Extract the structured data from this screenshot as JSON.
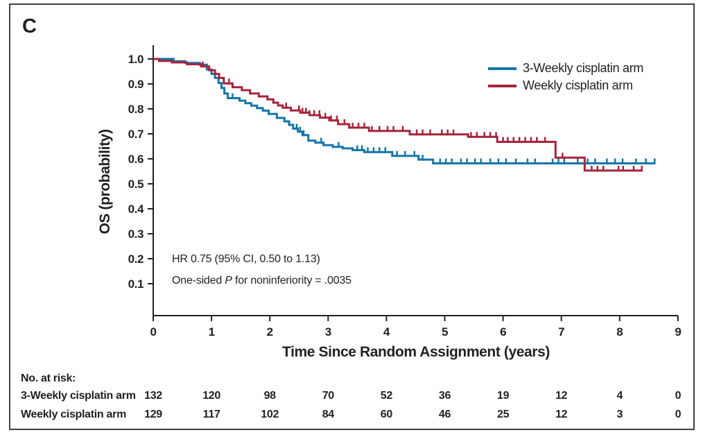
{
  "panel_label": "C",
  "annotation": {
    "line1": "HR 0.75 (95% CI, 0.50 to 1.13)",
    "line2_prefix": "One-sided ",
    "line2_italic": "P",
    "line2_suffix": " for noninferiority = .0035"
  },
  "chart_data": {
    "type": "line",
    "subtype": "kaplan-meier-step",
    "title": "",
    "xlabel": "Time Since Random Assignment (years)",
    "ylabel": "OS (probability)",
    "xlim": [
      0,
      9
    ],
    "ylim": [
      0.0,
      1.0
    ],
    "grid": false,
    "legend_position": "top-right",
    "xticks": [
      0,
      1,
      2,
      3,
      4,
      5,
      6,
      7,
      8,
      9
    ],
    "yticks": [
      {
        "label": "1.0",
        "v": 1.0
      },
      {
        "label": "0.9",
        "v": 0.9
      },
      {
        "label": "0.8",
        "v": 0.8
      },
      {
        "label": "0.7",
        "v": 0.7
      },
      {
        "label": "0.6",
        "v": 0.6
      },
      {
        "label": "0.5",
        "v": 0.5
      },
      {
        "label": "0.4",
        "v": 0.4
      },
      {
        "label": "0.3",
        "v": 0.3
      },
      {
        "label": "0.2",
        "v": 0.2
      },
      {
        "label": "0.1",
        "v": 0.1
      }
    ],
    "annotations": [
      "HR 0.75 (95% CI, 0.50 to 1.13)",
      "One-sided P for noninferiority = .0035"
    ],
    "series": [
      {
        "name": "3-Weekly cisplatin arm",
        "color": "#1575a8",
        "steps": [
          [
            0,
            1.0
          ],
          [
            0.35,
            0.991
          ],
          [
            0.55,
            0.984
          ],
          [
            0.8,
            0.977
          ],
          [
            0.92,
            0.958
          ],
          [
            1.0,
            0.94
          ],
          [
            1.06,
            0.924
          ],
          [
            1.12,
            0.904
          ],
          [
            1.17,
            0.884
          ],
          [
            1.22,
            0.862
          ],
          [
            1.28,
            0.843
          ],
          [
            1.48,
            0.833
          ],
          [
            1.58,
            0.823
          ],
          [
            1.68,
            0.813
          ],
          [
            1.78,
            0.803
          ],
          [
            1.88,
            0.793
          ],
          [
            1.98,
            0.78
          ],
          [
            2.12,
            0.764
          ],
          [
            2.25,
            0.75
          ],
          [
            2.33,
            0.736
          ],
          [
            2.4,
            0.721
          ],
          [
            2.48,
            0.709
          ],
          [
            2.56,
            0.695
          ],
          [
            2.66,
            0.673
          ],
          [
            2.78,
            0.665
          ],
          [
            2.92,
            0.655
          ],
          [
            3.08,
            0.648
          ],
          [
            3.25,
            0.642
          ],
          [
            3.42,
            0.635
          ],
          [
            3.62,
            0.627
          ],
          [
            4.1,
            0.612
          ],
          [
            4.55,
            0.597
          ],
          [
            4.8,
            0.582
          ],
          [
            8.6,
            0.582
          ]
        ],
        "censor_ticks": [
          1.36,
          2.46,
          2.52,
          2.58,
          2.88,
          3.18,
          3.5,
          3.58,
          3.68,
          3.78,
          3.88,
          3.98,
          4.18,
          4.32,
          4.48,
          4.62,
          4.92,
          5.02,
          5.12,
          5.28,
          5.38,
          5.52,
          5.62,
          5.78,
          5.92,
          6.05,
          6.22,
          6.42,
          6.55,
          6.85,
          6.95,
          7.05,
          7.28,
          7.45,
          7.58,
          7.78,
          7.92,
          8.05,
          8.28,
          8.45,
          8.6
        ]
      },
      {
        "name": "Weekly cisplatin arm",
        "color": "#a8233a",
        "steps": [
          [
            0,
            1.0
          ],
          [
            0.1,
            0.992
          ],
          [
            0.32,
            0.986
          ],
          [
            0.58,
            0.979
          ],
          [
            0.82,
            0.97
          ],
          [
            0.96,
            0.955
          ],
          [
            1.06,
            0.94
          ],
          [
            1.13,
            0.924
          ],
          [
            1.21,
            0.902
          ],
          [
            1.36,
            0.887
          ],
          [
            1.52,
            0.875
          ],
          [
            1.66,
            0.862
          ],
          [
            1.81,
            0.85
          ],
          [
            1.96,
            0.838
          ],
          [
            2.06,
            0.825
          ],
          [
            2.14,
            0.814
          ],
          [
            2.22,
            0.805
          ],
          [
            2.36,
            0.794
          ],
          [
            2.52,
            0.785
          ],
          [
            2.68,
            0.775
          ],
          [
            2.86,
            0.765
          ],
          [
            3.02,
            0.754
          ],
          [
            3.17,
            0.739
          ],
          [
            3.36,
            0.725
          ],
          [
            3.7,
            0.712
          ],
          [
            4.4,
            0.698
          ],
          [
            5.4,
            0.688
          ],
          [
            5.9,
            0.668
          ],
          [
            6.9,
            0.605
          ],
          [
            7.4,
            0.553
          ],
          [
            8.38,
            0.553
          ]
        ],
        "censor_ticks": [
          0.85,
          1.3,
          2.28,
          2.5,
          2.56,
          2.62,
          2.68,
          2.76,
          2.85,
          2.95,
          3.05,
          3.15,
          3.28,
          3.42,
          3.52,
          3.62,
          3.75,
          3.88,
          4.02,
          4.12,
          4.28,
          4.52,
          4.62,
          4.75,
          4.95,
          5.05,
          5.15,
          5.45,
          5.55,
          5.68,
          5.78,
          5.88,
          6.0,
          6.08,
          6.18,
          6.28,
          6.38,
          6.48,
          6.58,
          6.72,
          7.02,
          7.52,
          7.62,
          7.72,
          7.98,
          8.06,
          8.24,
          8.38
        ]
      }
    ]
  },
  "risk_table": {
    "header": "No. at risk:",
    "time_points": [
      0,
      1,
      2,
      3,
      4,
      5,
      6,
      7,
      8,
      9
    ],
    "rows": [
      {
        "label": "3-Weekly cisplatin arm",
        "counts": [
          132,
          120,
          98,
          70,
          52,
          36,
          19,
          12,
          4,
          0
        ]
      },
      {
        "label": "Weekly cisplatin arm",
        "counts": [
          129,
          117,
          102,
          84,
          60,
          46,
          25,
          12,
          3,
          0
        ]
      }
    ]
  }
}
